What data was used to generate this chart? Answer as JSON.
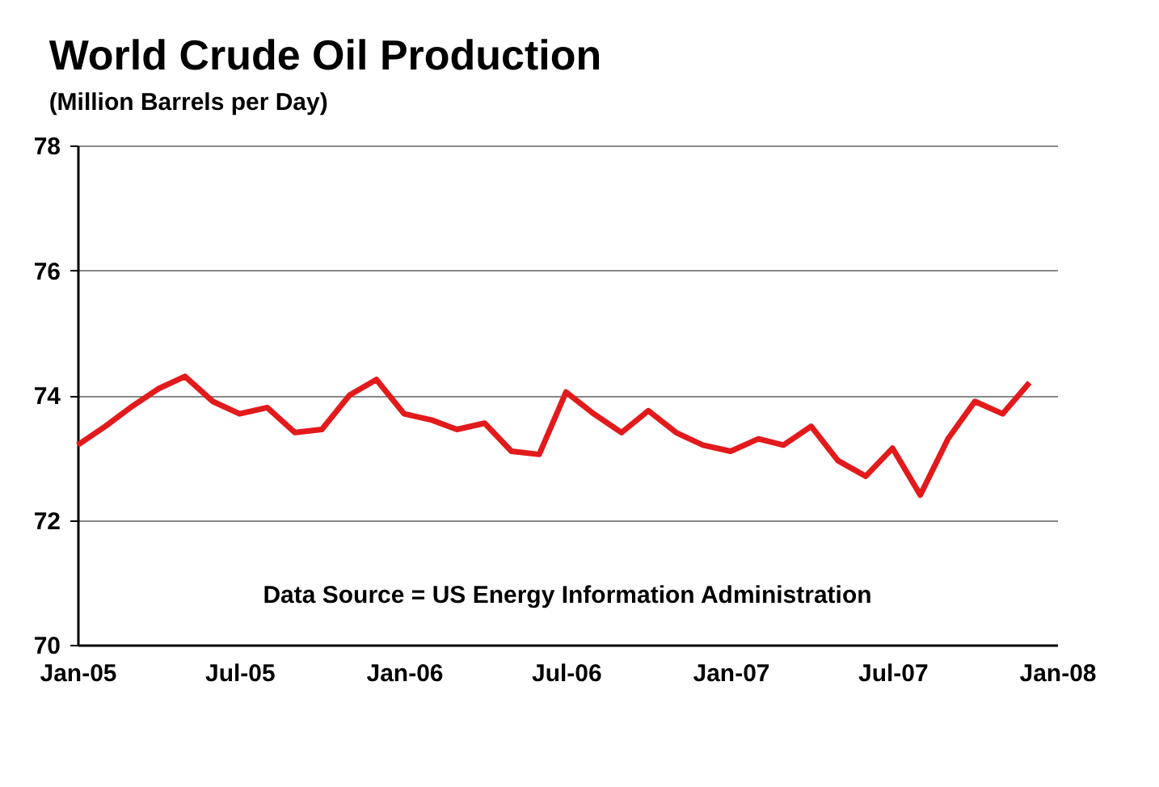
{
  "chart_data": {
    "type": "line",
    "title": "World Crude Oil Production",
    "subtitle": "(Million Barrels per Day)",
    "annotations": [
      "Data Source = US Energy Information Administration"
    ],
    "x": [
      "2005-01",
      "2005-02",
      "2005-03",
      "2005-04",
      "2005-05",
      "2005-06",
      "2005-07",
      "2005-08",
      "2005-09",
      "2005-10",
      "2005-11",
      "2005-12",
      "2006-01",
      "2006-02",
      "2006-03",
      "2006-04",
      "2006-05",
      "2006-06",
      "2006-07",
      "2006-08",
      "2006-09",
      "2006-10",
      "2006-11",
      "2006-12",
      "2007-01",
      "2007-02",
      "2007-03",
      "2007-04",
      "2007-05",
      "2007-06",
      "2007-07",
      "2007-08",
      "2007-09",
      "2007-10",
      "2007-11",
      "2007-12"
    ],
    "series": [
      {
        "color": "#e31a1c",
        "values": [
          73.2,
          73.5,
          73.8,
          74.1,
          74.3,
          73.9,
          73.7,
          73.8,
          73.4,
          73.45,
          74.0,
          74.25,
          73.7,
          73.6,
          73.45,
          73.55,
          73.1,
          73.05,
          74.05,
          73.7,
          73.4,
          73.75,
          73.4,
          73.2,
          73.1,
          73.3,
          73.2,
          73.5,
          72.95,
          72.7,
          73.15,
          72.4,
          73.3,
          73.9,
          73.7,
          74.2
        ]
      }
    ],
    "xlim": [
      "2005-01",
      "2008-01"
    ],
    "xticks": [
      {
        "value": "2005-01",
        "label": "Jan-05"
      },
      {
        "value": "2005-07",
        "label": "Jul-05"
      },
      {
        "value": "2006-01",
        "label": "Jan-06"
      },
      {
        "value": "2006-07",
        "label": "Jul-06"
      },
      {
        "value": "2007-01",
        "label": "Jan-07"
      },
      {
        "value": "2007-07",
        "label": "Jul-07"
      },
      {
        "value": "2008-01",
        "label": "Jan-08"
      }
    ],
    "ylim": [
      70,
      78
    ],
    "yticks": [
      70,
      72,
      74,
      76,
      78
    ],
    "grid": "y",
    "marker": "none",
    "line_style": "solid"
  }
}
